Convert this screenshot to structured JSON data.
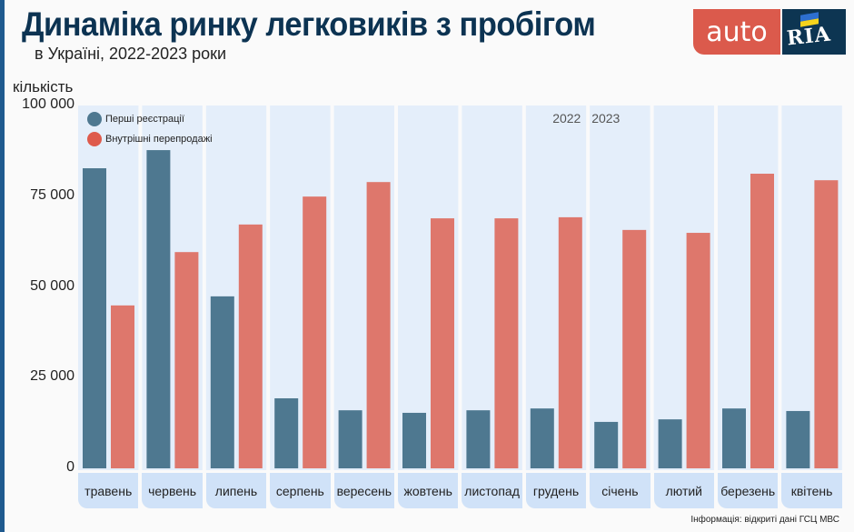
{
  "header": {
    "title": "Динаміка ринку легковиків з пробігом",
    "subtitle": "в Україні, 2022-2023 роки"
  },
  "logo": {
    "left_text": "auto",
    "right_text": "RIA",
    "colors": {
      "auto_bg": "#db5a4c",
      "ria_bg": "#0d3552",
      "flag_blue": "#2d6fd0",
      "flag_yellow": "#f5d31c"
    }
  },
  "source": "Інформація: відкриті дані ГСЦ МВС",
  "chart_data": {
    "type": "bar",
    "title": "Динаміка ринку легковиків з пробігом",
    "subtitle": "в Україні, 2022-2023 роки",
    "xlabel": "",
    "ylabel": "кількість",
    "ylim": [
      0,
      100000
    ],
    "yticks": [
      0,
      25000,
      50000,
      75000,
      100000
    ],
    "ytick_labels": [
      "0",
      "25 000",
      "50 000",
      "75 000",
      "100 000"
    ],
    "grid": false,
    "legend_position": "top-left",
    "year_labels": [
      {
        "text": "2022",
        "after_category": "грудень"
      },
      {
        "text": "2023",
        "before_category": "січень"
      }
    ],
    "categories": [
      "травень",
      "червень",
      "липень",
      "серпень",
      "вересень",
      "жовтень",
      "листопад",
      "грудень",
      "січень",
      "лютий",
      "березень",
      "квітень"
    ],
    "series": [
      {
        "name": "Перші реєстрації",
        "color": "#4e7890",
        "values": [
          82700,
          87700,
          47400,
          19300,
          16000,
          15300,
          16000,
          16500,
          12800,
          13500,
          16500,
          15800
        ]
      },
      {
        "name": "Внутрішні перепродажі",
        "color": "#de776c",
        "values": [
          44900,
          59600,
          67200,
          74900,
          78900,
          68900,
          68900,
          69200,
          65700,
          64900,
          81200,
          79400
        ]
      }
    ],
    "legend_dot_colors": [
      "#4e7890",
      "#de5a4c"
    ],
    "column_bg_color": "#e4eefa",
    "category_label_bg": "#d0e2f8"
  }
}
